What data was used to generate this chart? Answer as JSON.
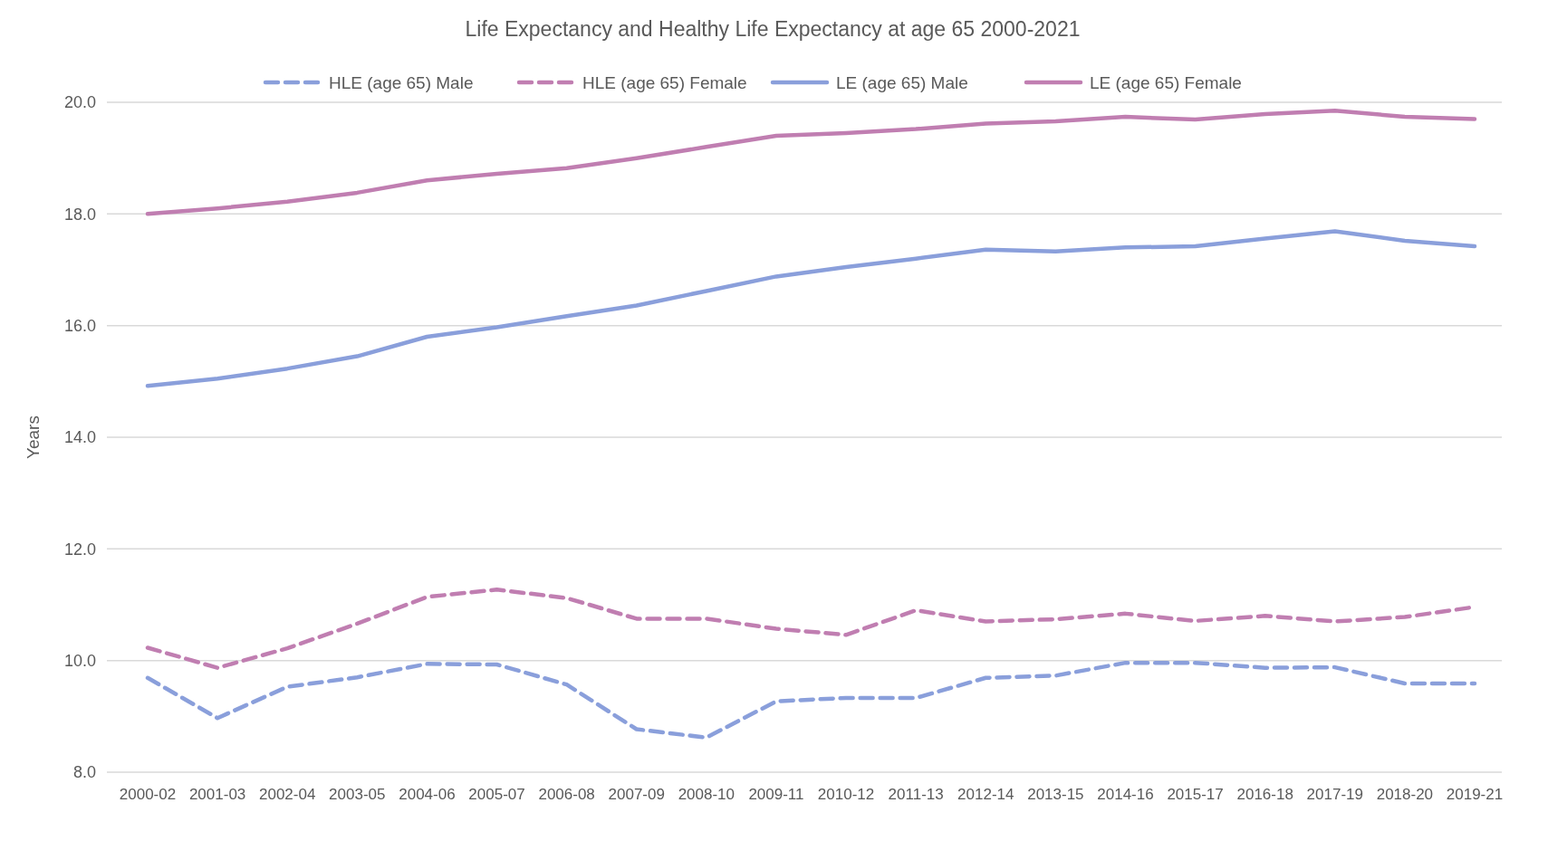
{
  "chart_data": {
    "type": "line",
    "title": "Life Expectancy and Healthy Life Expectancy at age 65 2000-2021",
    "ylabel": "Years",
    "categories": [
      "2000-02",
      "2001-03",
      "2002-04",
      "2003-05",
      "2004-06",
      "2005-07",
      "2006-08",
      "2007-09",
      "2008-10",
      "2009-11",
      "2010-12",
      "2011-13",
      "2012-14",
      "2013-15",
      "2014-16",
      "2015-17",
      "2016-18",
      "2017-19",
      "2018-20",
      "2019-21"
    ],
    "ylim": [
      8,
      20
    ],
    "yticks": [
      {
        "value": 8,
        "label": "8.0"
      },
      {
        "value": 10,
        "label": "10.0"
      },
      {
        "value": 12,
        "label": "12.0"
      },
      {
        "value": 14,
        "label": "14.0"
      },
      {
        "value": 16,
        "label": "16.0"
      },
      {
        "value": 18,
        "label": "18.0"
      },
      {
        "value": 20,
        "label": "20.0"
      }
    ],
    "grid": "y",
    "legend": "top",
    "series": [
      {
        "name": "HLE (age 65) Male",
        "color": "#8a9fdb",
        "line_style": "dashed",
        "values": [
          9.69,
          8.97,
          9.53,
          9.7,
          9.94,
          9.93,
          9.57,
          8.77,
          8.62,
          9.27,
          9.33,
          9.33,
          9.69,
          9.73,
          9.96,
          9.96,
          9.87,
          9.88,
          9.59,
          9.59
        ]
      },
      {
        "name": "HLE (age 65) Female",
        "color": "#c07eb1",
        "line_style": "dashed",
        "values": [
          10.23,
          9.87,
          10.22,
          10.66,
          11.14,
          11.27,
          11.12,
          10.75,
          10.75,
          10.57,
          10.46,
          10.9,
          10.7,
          10.74,
          10.84,
          10.71,
          10.8,
          10.7,
          10.78,
          10.96
        ]
      },
      {
        "name": "LE (age 65) Male",
        "color": "#8a9fdb",
        "line_style": "solid",
        "values": [
          14.92,
          15.05,
          15.23,
          15.45,
          15.8,
          15.97,
          16.17,
          16.36,
          16.62,
          16.88,
          17.05,
          17.2,
          17.36,
          17.33,
          17.4,
          17.42,
          17.56,
          17.69,
          17.52,
          17.42
        ]
      },
      {
        "name": "LE (age 65) Female",
        "color": "#c07eb1",
        "line_style": "solid",
        "values": [
          18.0,
          18.1,
          18.22,
          18.38,
          18.6,
          18.72,
          18.82,
          19.0,
          19.2,
          19.4,
          19.45,
          19.52,
          19.62,
          19.66,
          19.74,
          19.69,
          19.79,
          19.85,
          19.74,
          19.7
        ]
      }
    ]
  }
}
